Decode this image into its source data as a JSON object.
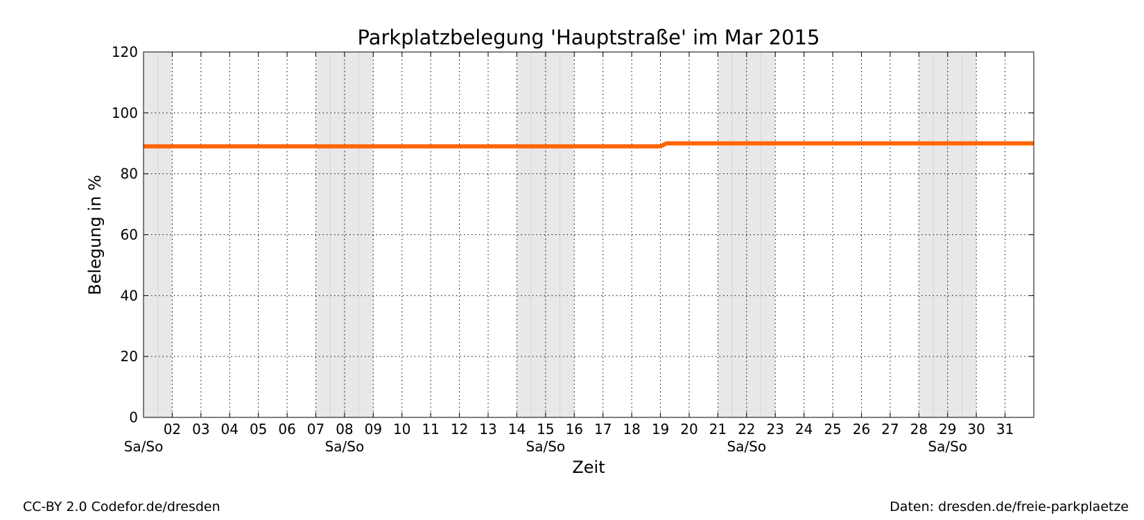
{
  "chart_data": {
    "type": "line",
    "title": "Parkplatzbelegung 'Hauptstraße' im Mar 2015",
    "xlabel": "Zeit",
    "ylabel": "Belegung in %",
    "ylim": [
      0,
      120
    ],
    "yticks": [
      0,
      20,
      40,
      60,
      80,
      100,
      120
    ],
    "xlim": [
      "2015-03-01",
      "2015-04-01"
    ],
    "xticks": [
      "02",
      "03",
      "04",
      "05",
      "06",
      "07",
      "08",
      "09",
      "10",
      "11",
      "12",
      "13",
      "14",
      "15",
      "16",
      "17",
      "18",
      "19",
      "20",
      "21",
      "22",
      "23",
      "24",
      "25",
      "26",
      "27",
      "28",
      "29",
      "30",
      "31"
    ],
    "weekend_label": "Sa/So",
    "weekends": [
      {
        "start": "2015-03-01",
        "end": "2015-03-02",
        "label_day": "01"
      },
      {
        "start": "2015-03-07",
        "end": "2015-03-09",
        "label_day": "08"
      },
      {
        "start": "2015-03-14",
        "end": "2015-03-16",
        "label_day": "15"
      },
      {
        "start": "2015-03-21",
        "end": "2015-03-23",
        "label_day": "22"
      },
      {
        "start": "2015-03-28",
        "end": "2015-03-30",
        "label_day": "29"
      }
    ],
    "grid": true,
    "series": [
      {
        "color": "#ff6600",
        "points": [
          {
            "x": "2015-03-01",
            "y": 89
          },
          {
            "x": "2015-03-19",
            "y": 89
          },
          {
            "x": "2015-03-19 05:00",
            "y": 90
          },
          {
            "x": "2015-04-01",
            "y": 90
          }
        ]
      }
    ]
  },
  "footer": {
    "license": "CC-BY 2.0 Codefor.de/dresden",
    "source": "Daten: dresden.de/freie-parkplaetze"
  }
}
